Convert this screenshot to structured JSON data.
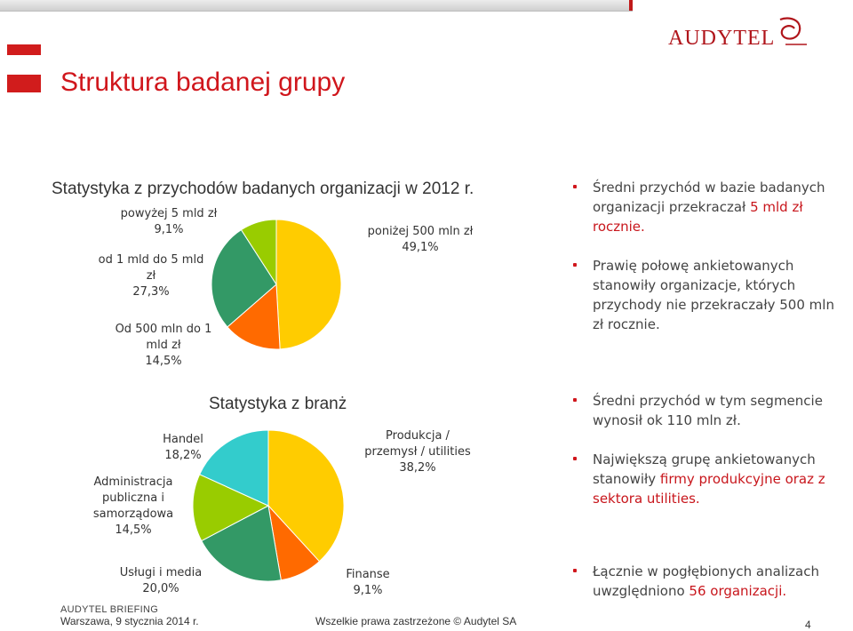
{
  "header": {
    "title": "Struktura badanej grupy",
    "logo_text": "AUDYTEL"
  },
  "chart_data": [
    {
      "type": "pie",
      "title": "Statystyka z przychodów badanych organizacji w 2012 r.",
      "slices": [
        {
          "label": "poniżej 500 mln zł",
          "display": "poniżej 500 mln zł\n49,1%",
          "value": 49.1,
          "color": "#FFCC00"
        },
        {
          "label": "Od 500 mln do 1 mld zł",
          "display": "Od 500 mln do 1\nmld zł\n14,5%",
          "value": 14.5,
          "color": "#FF6A00"
        },
        {
          "label": "od 1 mld do 5 mld zł",
          "display": "od 1 mld do 5 mld\nzł\n27,3%",
          "value": 27.3,
          "color": "#339966"
        },
        {
          "label": "powyżej 5 mld zł",
          "display": "powyżej 5 mld zł\n9,1%",
          "value": 9.1,
          "color": "#99CC00"
        }
      ]
    },
    {
      "type": "pie",
      "title": "Statystyka z branż",
      "slices": [
        {
          "label": "Produkcja / przemysł / utilities",
          "display": "Produkcja /\nprzemysł / utilities\n38,2%",
          "value": 38.2,
          "color": "#FFCC00"
        },
        {
          "label": "Finanse",
          "display": "Finanse\n9,1%",
          "value": 9.1,
          "color": "#FF6A00"
        },
        {
          "label": "Usługi i media",
          "display": "Usługi i media\n20,0%",
          "value": 20.0,
          "color": "#339966"
        },
        {
          "label": "Administracja publiczna i samorządowa",
          "display": "Administracja\npubliczna i\nsamorządowa\n14,5%",
          "value": 14.5,
          "color": "#99CC00"
        },
        {
          "label": "Handel",
          "display": "Handel\n18,2%",
          "value": 18.2,
          "color": "#33CCCC"
        }
      ]
    }
  ],
  "bullets_top": [
    {
      "parts": [
        {
          "text": "Średni przychód w bazie badanych organizacji  przekraczał ",
          "red": false
        },
        {
          "text": "5 mld zł rocznie.",
          "red": true
        }
      ]
    },
    {
      "parts": [
        {
          "text": "Prawię połowę ankietowanych stanowiły organizacje, których przychody nie przekraczały 500 mln zł rocznie.",
          "red": false
        }
      ]
    }
  ],
  "bullets_mid": [
    {
      "parts": [
        {
          "text": "Średni przychód w tym segmencie wynosił ok 110 mln zł.",
          "red": false
        }
      ]
    },
    {
      "parts": [
        {
          "text": "Największą grupę ankietowanych stanowiły ",
          "red": false
        },
        {
          "text": "firmy produkcyjne oraz z sektora utilities.",
          "red": true
        }
      ]
    }
  ],
  "bullets_bottom": [
    {
      "parts": [
        {
          "text": "Łącznie w pogłębionych analizach uwzględniono ",
          "red": false
        },
        {
          "text": "56 organizacji.",
          "red": true
        }
      ]
    }
  ],
  "footer": {
    "brand": "AUDYTEL BRIEFING",
    "date": "Warszawa, 9 stycznia 2014 r.",
    "rights": "Wszelkie prawa zastrzeżone © Audytel  SA",
    "page": "4"
  }
}
